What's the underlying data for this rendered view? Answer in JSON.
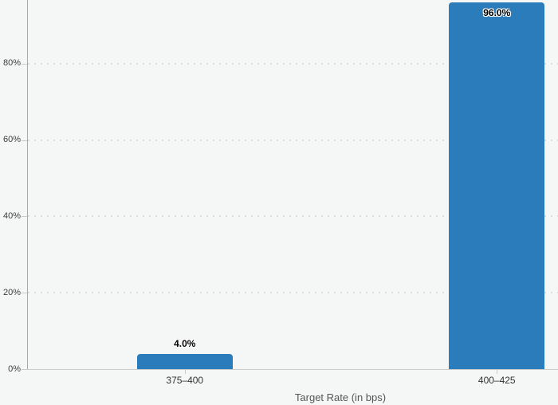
{
  "chart_data": {
    "type": "bar",
    "title": "",
    "xlabel": "Target Rate (in bps)",
    "ylabel": "",
    "categories": [
      "375–400",
      "400–425"
    ],
    "values": [
      4.0,
      96.0
    ],
    "value_labels": [
      "4.0%",
      "96.0%"
    ],
    "yticks": [
      {
        "label": "0%",
        "value": 0
      },
      {
        "label": "20%",
        "value": 20
      },
      {
        "label": "40%",
        "value": 40
      },
      {
        "label": "60%",
        "value": 60
      },
      {
        "label": "80%",
        "value": 80
      }
    ],
    "ylim": [
      0,
      96.7
    ],
    "grid": "horizontal-dotted",
    "legend": "none",
    "colors": {
      "bar": "#2b7cba",
      "background": "#f5f6f6",
      "grid_dot": "#dcdcdc",
      "y_axis_line": "#a8a8a8",
      "x_axis_line": "#cbcbcb",
      "tick": "#c9c9c9",
      "tick_label": "#3d3d3d",
      "category_label": "#333333",
      "axis_title": "#555555",
      "data_label": "#000000"
    }
  }
}
